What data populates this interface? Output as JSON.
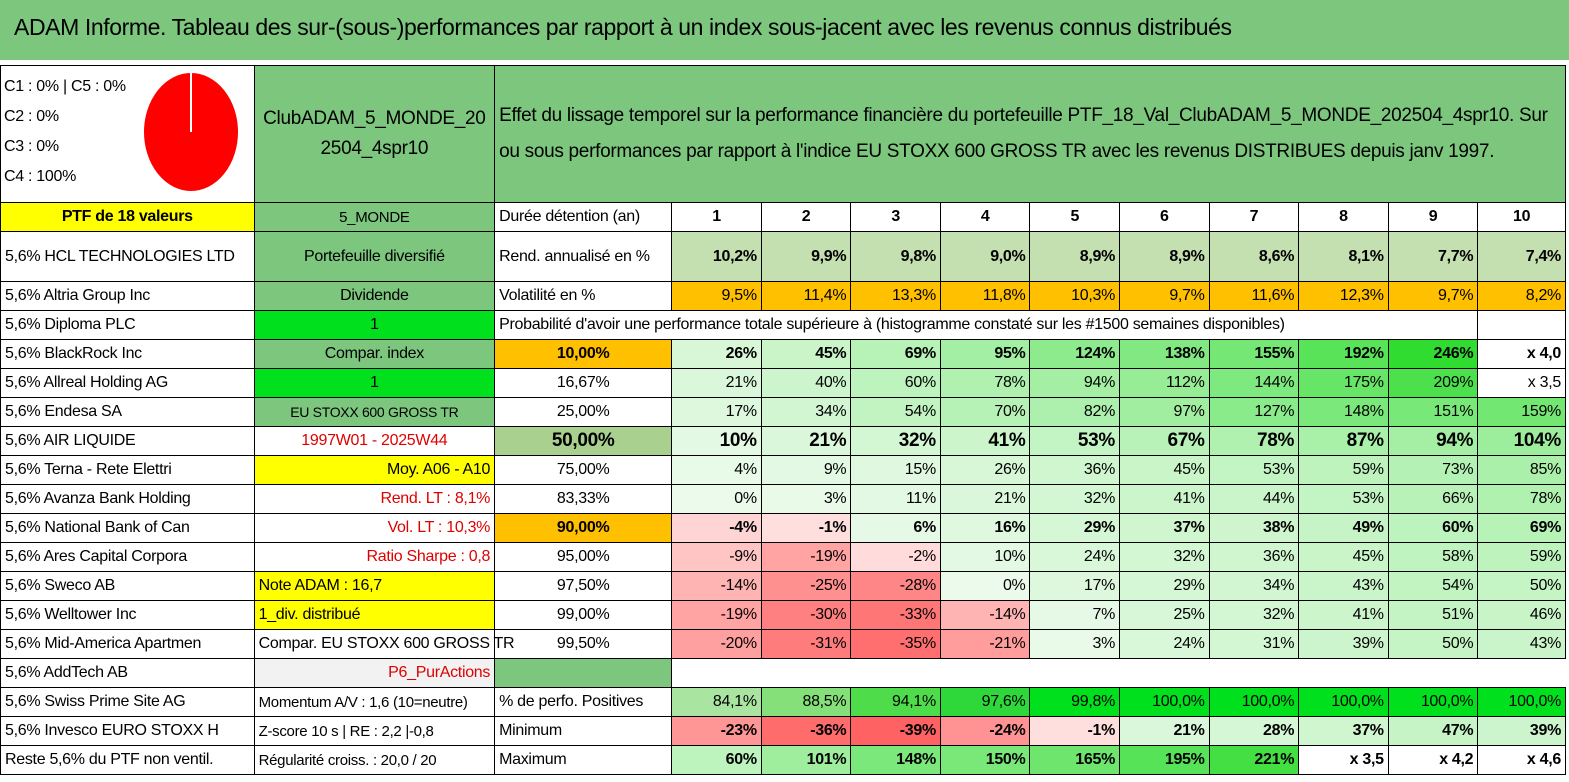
{
  "title": "ADAM Informe. Tableau des sur-(sous-)performances par rapport à un index sous-jacent avec les revenus connus distribués",
  "pie": {
    "labels": [
      "C1 : 0% | C5 : 0%",
      "C2 : 0%",
      "C3 : 0%",
      "C4 : 100%"
    ],
    "color": "#ff0000"
  },
  "header": {
    "portfolio_name": "ClubADAM_5_MONDE_202504_4spr10",
    "description": "Effet du lissage temporel sur la performance financière du portefeuille PTF_18_Val_ClubADAM_5_MONDE_202504_4spr10. Sur ou sous performances par rapport à l'indice EU STOXX 600 GROSS TR avec les revenus DISTRIBUES depuis janv 1997."
  },
  "ptf_label": "PTF de 18 valeurs",
  "holdings": [
    "5,6% HCL TECHNOLOGIES LTD",
    "5,6% Altria Group Inc",
    "5,6% Diploma PLC",
    "5,6% BlackRock Inc",
    "5,6% Allreal Holding AG",
    "5,6% Endesa SA",
    "5,6% AIR LIQUIDE",
    "5,6% Terna - Rete Elettri",
    "5,6% Avanza Bank Holding",
    "5,6% National Bank of Can",
    "5,6% Ares Capital Corpora",
    "5,6% Sweco AB",
    "5,6% Welltower Inc",
    "5,6% Mid-America Apartmen",
    "5,6% AddTech AB",
    "5,6% Swiss Prime Site AG",
    "5,6% Invesco EURO STOXX H",
    "Reste 5,6% du PTF non ventil."
  ],
  "info": [
    "5_MONDE",
    "Portefeuille diversifié",
    "Dividende",
    "1",
    "Compar. index",
    "1",
    "EU STOXX 600 GROSS TR",
    "1997W01 - 2025W44",
    "Moy. A06 - A10",
    "Rend. LT : 8,1%",
    "Vol. LT : 10,3%",
    "Ratio Sharpe : 0,8",
    "Note ADAM : 16,7",
    "1_div. distribué",
    "Compar. EU STOXX 600 GROSS TR",
    "P6_PurActions",
    "Momentum A/V : 1,6 (10=neutre)",
    "Z-score 10 s | RE : 2,2 |-0,8",
    "Régularité croiss. : 20,0 / 20"
  ],
  "duration_label": "Durée détention (an)",
  "years": [
    "1",
    "2",
    "3",
    "4",
    "5",
    "6",
    "7",
    "8",
    "9",
    "10"
  ],
  "rend_label": "Rend. annualisé en %",
  "rend": [
    "10,2%",
    "9,9%",
    "9,8%",
    "9,0%",
    "8,9%",
    "8,9%",
    "8,6%",
    "8,1%",
    "7,7%",
    "7,4%"
  ],
  "vol_label": "Volatilité en %",
  "vol": [
    "9,5%",
    "11,4%",
    "13,3%",
    "11,8%",
    "10,3%",
    "9,7%",
    "11,6%",
    "12,3%",
    "9,7%",
    "8,2%"
  ],
  "prob_title": "Probabilité d'avoir une performance totale supérieure à (histogramme constaté sur les #1500 semaines disponibles)",
  "prob_rows": [
    {
      "p": "10,00%",
      "v": [
        "26%",
        "45%",
        "69%",
        "95%",
        "124%",
        "138%",
        "155%",
        "192%",
        "246%",
        "x 4,0"
      ]
    },
    {
      "p": "16,67%",
      "v": [
        "21%",
        "40%",
        "60%",
        "78%",
        "94%",
        "112%",
        "144%",
        "175%",
        "209%",
        "x 3,5"
      ]
    },
    {
      "p": "25,00%",
      "v": [
        "17%",
        "34%",
        "54%",
        "70%",
        "82%",
        "97%",
        "127%",
        "148%",
        "151%",
        "159%"
      ]
    },
    {
      "p": "50,00%",
      "v": [
        "10%",
        "21%",
        "32%",
        "41%",
        "53%",
        "67%",
        "78%",
        "87%",
        "94%",
        "104%"
      ]
    },
    {
      "p": "75,00%",
      "v": [
        "4%",
        "9%",
        "15%",
        "26%",
        "36%",
        "45%",
        "53%",
        "59%",
        "73%",
        "85%"
      ]
    },
    {
      "p": "83,33%",
      "v": [
        "0%",
        "3%",
        "11%",
        "21%",
        "32%",
        "41%",
        "44%",
        "53%",
        "66%",
        "78%"
      ]
    },
    {
      "p": "90,00%",
      "v": [
        "-4%",
        "-1%",
        "6%",
        "16%",
        "29%",
        "37%",
        "38%",
        "49%",
        "60%",
        "69%"
      ]
    },
    {
      "p": "95,00%",
      "v": [
        "-9%",
        "-19%",
        "-2%",
        "10%",
        "24%",
        "32%",
        "36%",
        "45%",
        "58%",
        "59%"
      ]
    },
    {
      "p": "97,50%",
      "v": [
        "-14%",
        "-25%",
        "-28%",
        "0%",
        "17%",
        "29%",
        "34%",
        "43%",
        "54%",
        "50%"
      ]
    },
    {
      "p": "99,00%",
      "v": [
        "-19%",
        "-30%",
        "-33%",
        "-14%",
        "7%",
        "25%",
        "32%",
        "41%",
        "51%",
        "46%"
      ]
    },
    {
      "p": "99,50%",
      "v": [
        "-20%",
        "-31%",
        "-35%",
        "-21%",
        "3%",
        "24%",
        "31%",
        "39%",
        "50%",
        "43%"
      ]
    }
  ],
  "pos_label": "% de perfo. Positives",
  "pos": [
    "84,1%",
    "88,5%",
    "94,1%",
    "97,6%",
    "99,8%",
    "100,0%",
    "100,0%",
    "100,0%",
    "100,0%",
    "100,0%"
  ],
  "min_label": "Minimum",
  "min": [
    "-23%",
    "-36%",
    "-39%",
    "-24%",
    "-1%",
    "21%",
    "28%",
    "37%",
    "47%",
    "39%"
  ],
  "max_label": "Maximum",
  "max": [
    "60%",
    "101%",
    "148%",
    "150%",
    "165%",
    "195%",
    "221%",
    "x 3,5",
    "x 4,2",
    "x 4,6"
  ]
}
